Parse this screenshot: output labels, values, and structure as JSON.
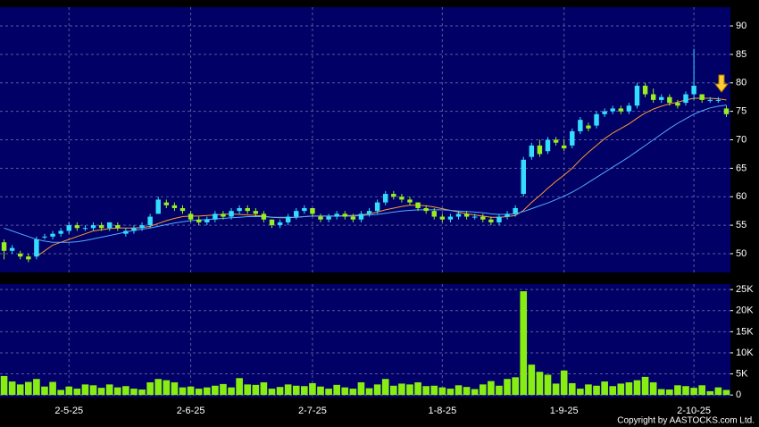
{
  "copyright": "Copyright by AASTOCKS.com Ltd.",
  "chart_data": [
    {
      "type": "candlestick",
      "xlim": [
        -0.5,
        89.5
      ],
      "ylim": [
        46.7,
        93.3
      ],
      "yticks": [
        50,
        55,
        60,
        65,
        70,
        75,
        80,
        85,
        90
      ],
      "grid": true,
      "up_color": "#33ddff",
      "down_color": "#99ee22",
      "open": [
        52,
        50.5,
        50,
        49.5,
        49.5,
        53,
        53,
        53.5,
        54,
        55,
        54.5,
        54.5,
        55,
        54.5,
        55,
        53.5,
        54,
        54.5,
        55,
        57,
        59,
        58.5,
        58,
        57,
        56,
        55.5,
        56,
        57,
        56.5,
        57.5,
        58,
        57.5,
        57,
        56,
        55,
        55.5,
        56.5,
        57.5,
        58,
        56.5,
        56,
        56.5,
        57,
        56.5,
        56,
        57,
        57.5,
        59,
        60.5,
        60,
        59.5,
        59,
        58,
        57.5,
        56.5,
        56,
        56.5,
        57,
        56.5,
        56.5,
        56,
        55.5,
        56.5,
        57,
        60.5,
        67,
        69,
        68,
        70,
        69,
        69,
        71.5,
        72.5,
        72.5,
        74.5,
        75,
        75.5,
        75,
        76,
        79.5,
        78,
        77,
        77.5,
        76.5,
        76.5,
        78,
        78,
        77,
        77,
        75.5
      ],
      "high": [
        52.5,
        51.5,
        50.5,
        50,
        53,
        53.5,
        54,
        54.5,
        55.5,
        55.5,
        55,
        55.5,
        55.5,
        55.5,
        55.5,
        54.5,
        55,
        55.5,
        57,
        60,
        59.5,
        59,
        58.5,
        57.5,
        56.5,
        56.5,
        57.5,
        57.5,
        58,
        58.5,
        58.5,
        58,
        57.5,
        56,
        56,
        57,
        58,
        58.5,
        58,
        57,
        57,
        57.5,
        57.5,
        57,
        57.5,
        58,
        59.5,
        61,
        61,
        60.5,
        60,
        59,
        58.5,
        58,
        57,
        57,
        57.5,
        57.5,
        57,
        57,
        56.5,
        57,
        57.5,
        58.5,
        67,
        69.5,
        70,
        70.5,
        70.5,
        70,
        72,
        74,
        73,
        75,
        75.5,
        76,
        76,
        76.5,
        80,
        80,
        79,
        78,
        78,
        77,
        78.5,
        86,
        78,
        77.5,
        77.5,
        76
      ],
      "low": [
        49,
        50,
        49,
        48.5,
        49,
        52.5,
        52.5,
        53,
        53.5,
        54,
        54,
        54,
        54,
        54,
        54,
        53,
        53.5,
        54,
        54.5,
        57,
        58,
        57.5,
        57,
        55.5,
        55,
        55,
        55.5,
        56,
        56,
        57,
        57,
        56.5,
        55.5,
        54.5,
        54.5,
        55,
        56,
        57,
        56.5,
        55.5,
        55.5,
        56,
        56,
        55.5,
        55.5,
        56.5,
        57,
        58.5,
        59.5,
        59,
        58.5,
        57.5,
        57,
        56,
        55.5,
        55.5,
        56,
        56,
        56,
        55.5,
        55,
        55,
        56,
        56.5,
        60,
        66.5,
        67,
        67.5,
        69,
        68,
        68.5,
        71,
        71.5,
        72,
        74,
        74.5,
        74.5,
        74.5,
        75.5,
        77.5,
        76.5,
        76.5,
        76,
        75.5,
        76,
        77,
        76.5,
        76.5,
        76.5,
        74
      ],
      "close": [
        50.5,
        51,
        49.5,
        49,
        52.5,
        53,
        53.5,
        54,
        55,
        54.5,
        54.5,
        55,
        54.5,
        55.5,
        54.5,
        54,
        54.5,
        55,
        56.5,
        59.5,
        58.5,
        58,
        57.5,
        56,
        55.5,
        56,
        57,
        56.5,
        57.5,
        58,
        57.5,
        57,
        56,
        55,
        55.5,
        56.5,
        57.5,
        58,
        57,
        56,
        56.5,
        57,
        56.5,
        56,
        57,
        57.5,
        59,
        60.5,
        60,
        59.5,
        59,
        58,
        57.5,
        56.5,
        56,
        56.5,
        57,
        56.5,
        56.5,
        56,
        55.5,
        56.5,
        57,
        58,
        66.5,
        69,
        67.5,
        70,
        69.5,
        68.5,
        71.5,
        73.5,
        72,
        74.5,
        75,
        75.5,
        75,
        76,
        79.5,
        78,
        77,
        77.5,
        76.5,
        76,
        78,
        79.5,
        77,
        77,
        77,
        74.5
      ],
      "series": [
        {
          "color": "#ff9933",
          "values": [
            null,
            null,
            null,
            null,
            49.5,
            50.5,
            51.5,
            52,
            52.5,
            53,
            53.5,
            54,
            54.2,
            54.4,
            54.5,
            54.5,
            54.5,
            54.6,
            54.8,
            55.3,
            55.8,
            56.2,
            56.5,
            56.6,
            56.6,
            56.7,
            56.8,
            56.9,
            57,
            56.9,
            56.8,
            56.7,
            56.6,
            56.4,
            56.3,
            56.3,
            56.4,
            56.5,
            56.6,
            56.6,
            56.6,
            56.6,
            56.7,
            56.7,
            56.8,
            57,
            57.3,
            57.7,
            58,
            58.3,
            58.5,
            58.5,
            58.4,
            58.2,
            57.9,
            57.6,
            57.3,
            57,
            56.8,
            56.6,
            56.4,
            56.4,
            56.5,
            56.7,
            57.6,
            59,
            60.2,
            61.5,
            62.7,
            63.8,
            65,
            66.5,
            67.8,
            69,
            70.2,
            71.2,
            72,
            72.8,
            73.8,
            74.7,
            75.4,
            75.9,
            76.3,
            76.6,
            77,
            77.3,
            77.3,
            77.3,
            77.2,
            77
          ]
        },
        {
          "color": "#55aaff",
          "values": [
            54.5,
            54,
            53.5,
            53,
            52.5,
            52.2,
            52,
            52,
            52,
            52.1,
            52.3,
            52.6,
            52.9,
            53.2,
            53.5,
            53.8,
            54.1,
            54.3,
            54.5,
            54.8,
            55.1,
            55.4,
            55.6,
            55.8,
            55.9,
            56,
            56.1,
            56.2,
            56.3,
            56.4,
            56.5,
            56.5,
            56.5,
            56.4,
            56.4,
            56.4,
            56.4,
            56.5,
            56.6,
            56.6,
            56.6,
            56.6,
            56.6,
            56.6,
            56.7,
            56.8,
            56.9,
            57.1,
            57.3,
            57.5,
            57.6,
            57.7,
            57.7,
            57.7,
            57.7,
            57.6,
            57.5,
            57.4,
            57.3,
            57.2,
            57,
            56.9,
            56.9,
            57,
            57.4,
            57.9,
            58.4,
            58.9,
            59.5,
            60.1,
            60.8,
            61.6,
            62.5,
            63.4,
            64.3,
            65.2,
            66.1,
            67,
            68,
            69,
            70,
            71,
            72,
            72.9,
            73.7,
            74.5,
            75.1,
            75.6,
            75.9,
            76.1
          ]
        }
      ]
    },
    {
      "type": "bar",
      "color": "#88ee11",
      "grid": true,
      "xlim": [
        -0.5,
        89.5
      ],
      "xticks": [
        {
          "value": 8,
          "label": "2-5-25"
        },
        {
          "value": 23,
          "label": "2-6-25"
        },
        {
          "value": 38,
          "label": "2-7-25"
        },
        {
          "value": 54,
          "label": "1-8-25"
        },
        {
          "value": 69,
          "label": "1-9-25"
        },
        {
          "value": 85,
          "label": "2-10-25"
        }
      ],
      "ylim": [
        -600,
        26300
      ],
      "yticks": [
        0,
        {
          "value": 5000,
          "label": "5K"
        },
        {
          "value": 10000,
          "label": "10K"
        },
        {
          "value": 15000,
          "label": "15K"
        },
        {
          "value": 20000,
          "label": "20K"
        },
        {
          "value": 25000,
          "label": "25K"
        }
      ],
      "values": [
        4500,
        3200,
        2500,
        3100,
        3800,
        2000,
        3100,
        1200,
        2000,
        1500,
        2500,
        2300,
        1700,
        2500,
        1800,
        2100,
        1500,
        1300,
        3000,
        3800,
        3500,
        3000,
        1800,
        2000,
        1500,
        1800,
        2200,
        2600,
        1800,
        4000,
        2500,
        2400,
        3000,
        1500,
        1900,
        2500,
        2200,
        2100,
        2800,
        2000,
        1500,
        2400,
        1800,
        1500,
        3000,
        1600,
        2500,
        3800,
        2200,
        2700,
        2500,
        3000,
        2100,
        2200,
        1800,
        1500,
        2300,
        1900,
        1400,
        2500,
        3300,
        2200,
        3800,
        4200,
        24600,
        7200,
        5500,
        4800,
        2700,
        5800,
        2800,
        1500,
        2500,
        2200,
        3200,
        2100,
        2700,
        3000,
        3500,
        4300,
        3000,
        1400,
        1300,
        2300,
        2100,
        1700,
        2300,
        900,
        1800,
        1200
      ]
    }
  ]
}
